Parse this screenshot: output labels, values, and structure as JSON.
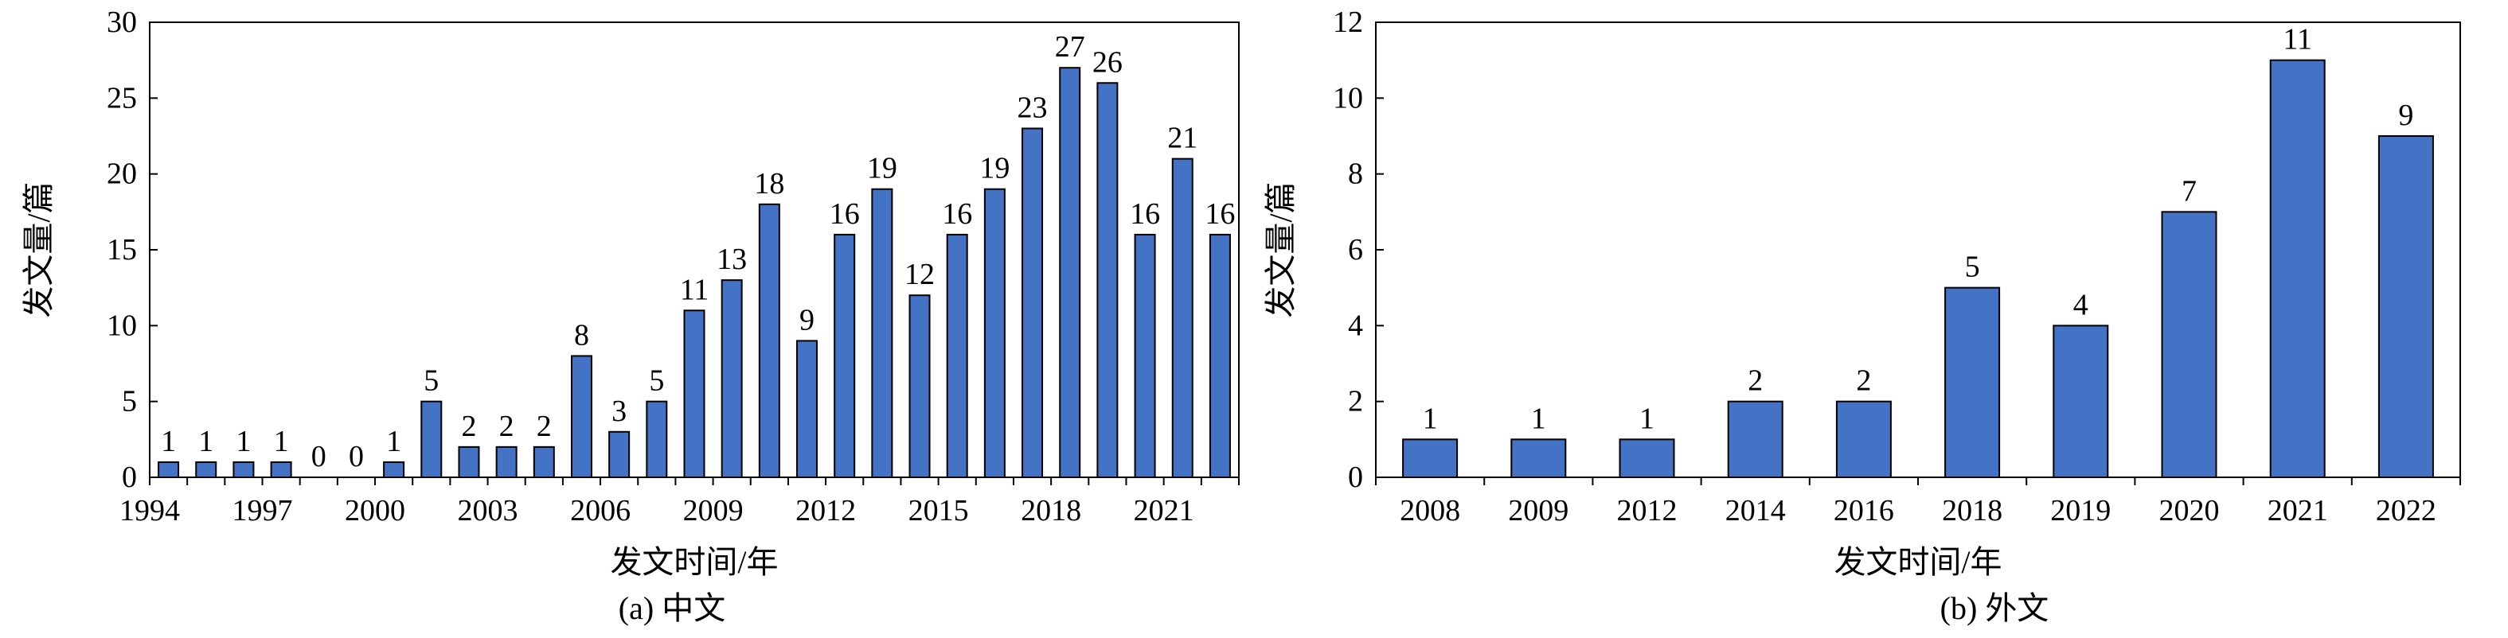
{
  "chart_data": [
    {
      "type": "bar",
      "caption": "(a) 中文",
      "xlabel": "发文时间/年",
      "ylabel": "发文量/篇",
      "ylim": [
        0,
        30
      ],
      "yticks": [
        0,
        5,
        10,
        15,
        20,
        25,
        30
      ],
      "x_tick_labels": [
        "1994",
        "1997",
        "2000",
        "2003",
        "2006",
        "2009",
        "2012",
        "2015",
        "2018",
        "2021"
      ],
      "categories": [
        "1994",
        "1995",
        "1996",
        "1997",
        "1998",
        "1999",
        "2000",
        "2001",
        "2002",
        "2003",
        "2004",
        "2005",
        "2006",
        "2007",
        "2008",
        "2009",
        "2010",
        "2011",
        "2012",
        "2013",
        "2014",
        "2015",
        "2016",
        "2017",
        "2018",
        "2019",
        "2020",
        "2021",
        "2022"
      ],
      "values": [
        1,
        1,
        1,
        1,
        0,
        0,
        1,
        5,
        2,
        2,
        2,
        8,
        3,
        5,
        11,
        13,
        18,
        9,
        16,
        19,
        12,
        16,
        19,
        23,
        27,
        26,
        16,
        21,
        16
      ],
      "bar_color": "#4472C4",
      "grid": false,
      "legend": "none"
    },
    {
      "type": "bar",
      "caption": "(b) 外文",
      "xlabel": "发文时间/年",
      "ylabel": "发文量/篇",
      "ylim": [
        0,
        12
      ],
      "yticks": [
        0,
        2,
        4,
        6,
        8,
        10,
        12
      ],
      "categories": [
        "2008",
        "2009",
        "2012",
        "2014",
        "2016",
        "2018",
        "2019",
        "2020",
        "2021",
        "2022"
      ],
      "values": [
        1,
        1,
        1,
        2,
        2,
        5,
        4,
        7,
        11,
        9
      ],
      "bar_color": "#4472C4",
      "grid": false,
      "legend": "none"
    }
  ]
}
